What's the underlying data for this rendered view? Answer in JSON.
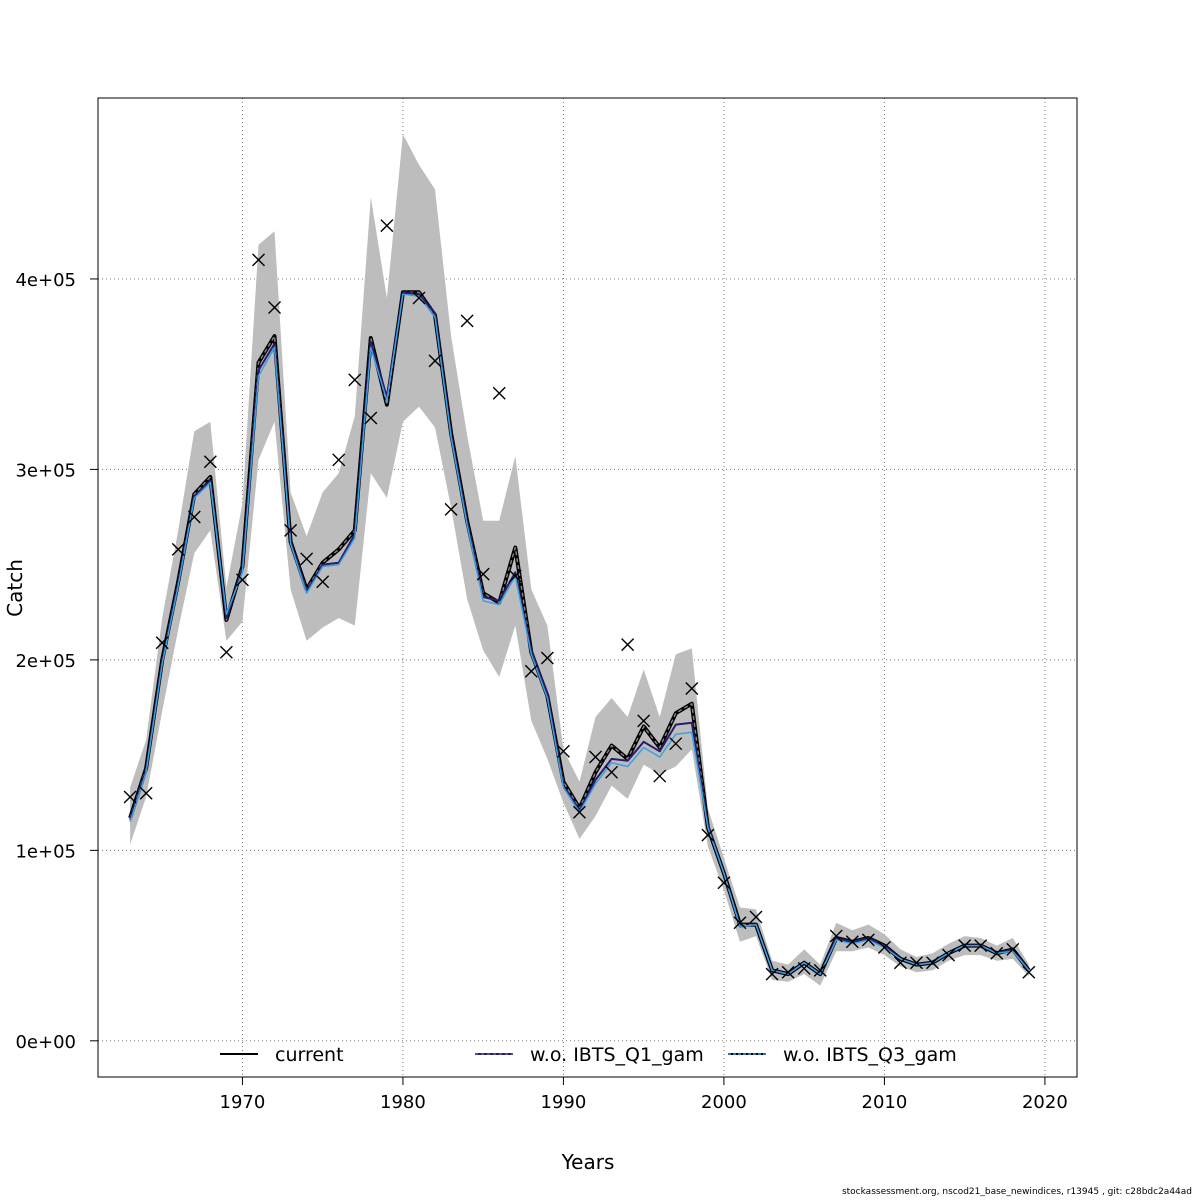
{
  "footer": "stockassessment.org, nscod21_base_newindices, r13945 , git: c28bdc2a44ad",
  "chart_data": {
    "type": "line",
    "title": "",
    "xlabel": "Years",
    "ylabel": "Catch",
    "xlim": [
      1961,
      2022
    ],
    "ylim": [
      -19000,
      495000
    ],
    "xticks": [
      1970,
      1980,
      1990,
      2000,
      2010,
      2020
    ],
    "yticks": [
      0,
      100000,
      200000,
      300000,
      400000
    ],
    "ytick_labels": [
      "0e+00",
      "1e+05",
      "2e+05",
      "3e+05",
      "4e+05"
    ],
    "grid": true,
    "legend_position": "bottom",
    "x": [
      1963,
      1964,
      1965,
      1966,
      1967,
      1968,
      1969,
      1970,
      1971,
      1972,
      1973,
      1974,
      1975,
      1976,
      1977,
      1978,
      1979,
      1980,
      1981,
      1982,
      1983,
      1984,
      1985,
      1986,
      1987,
      1988,
      1989,
      1990,
      1991,
      1992,
      1993,
      1994,
      1995,
      1996,
      1997,
      1998,
      1999,
      2000,
      2001,
      2002,
      2003,
      2004,
      2005,
      2006,
      2007,
      2008,
      2009,
      2010,
      2011,
      2012,
      2013,
      2014,
      2015,
      2016,
      2017,
      2018,
      2019
    ],
    "band": {
      "color": "#bdbdbd",
      "upper": [
        133000,
        158000,
        222000,
        268000,
        320000,
        325000,
        238000,
        282000,
        418000,
        425000,
        288000,
        265000,
        288000,
        298000,
        328000,
        443000,
        390000,
        476000,
        460000,
        447000,
        370000,
        318000,
        273000,
        273000,
        307000,
        237000,
        218000,
        153000,
        136000,
        170000,
        180000,
        170000,
        195000,
        170000,
        203000,
        206000,
        122000,
        96000,
        70000,
        69000,
        42000,
        40000,
        48000,
        40000,
        62000,
        58000,
        61000,
        56000,
        48000,
        44000,
        46000,
        51000,
        55000,
        54000,
        50000,
        54000,
        40000
      ],
      "lower": [
        103000,
        128000,
        173000,
        216000,
        256000,
        268000,
        210000,
        220000,
        305000,
        325000,
        237000,
        210000,
        217000,
        222000,
        218000,
        298000,
        285000,
        325000,
        333000,
        322000,
        280000,
        232000,
        205000,
        191000,
        218000,
        168000,
        148000,
        125000,
        106000,
        118000,
        134000,
        127000,
        145000,
        140000,
        144000,
        153000,
        102000,
        79000,
        52000,
        55000,
        32000,
        31000,
        35000,
        29000,
        47000,
        47000,
        49000,
        45000,
        39000,
        36000,
        37000,
        42000,
        45000,
        45000,
        42000,
        43000,
        34000
      ]
    },
    "series": [
      {
        "name": "current",
        "color": "#000000",
        "values": [
          117000,
          143000,
          200000,
          241000,
          287000,
          296000,
          221000,
          249000,
          356000,
          370000,
          262000,
          237000,
          251000,
          258000,
          268000,
          369000,
          334000,
          393000,
          393000,
          381000,
          319000,
          273000,
          235000,
          230000,
          259000,
          204000,
          181000,
          136000,
          122000,
          141000,
          155000,
          148000,
          165000,
          154000,
          172000,
          177000,
          112000,
          88000,
          61000,
          61000,
          37000,
          35000,
          41000,
          35000,
          54000,
          52000,
          54000,
          50000,
          43000,
          40000,
          41000,
          46000,
          50000,
          50000,
          46000,
          48000,
          37000
        ]
      },
      {
        "name": "w.o. IBTS_Q1_gam",
        "color": "#2a1c6b",
        "values": [
          116000,
          142000,
          199000,
          240000,
          286000,
          294000,
          222000,
          248000,
          352000,
          366000,
          262000,
          236000,
          250000,
          251000,
          266000,
          367000,
          338000,
          393000,
          392000,
          382000,
          318000,
          272000,
          233000,
          231000,
          246000,
          205000,
          182000,
          134000,
          121000,
          137000,
          148000,
          147000,
          157000,
          152000,
          166000,
          167000,
          113000,
          88000,
          60000,
          61000,
          37000,
          35000,
          41000,
          35000,
          54000,
          52000,
          54000,
          50000,
          43000,
          40000,
          41000,
          46000,
          50000,
          50000,
          46000,
          48000,
          37000
        ]
      },
      {
        "name": "w.o. IBTS_Q3_gam",
        "color": "#3aa0e0",
        "values": [
          115000,
          141000,
          198000,
          239000,
          285000,
          293000,
          224000,
          246000,
          349000,
          364000,
          261000,
          235000,
          249000,
          250000,
          264000,
          364000,
          336000,
          392000,
          391000,
          380000,
          317000,
          271000,
          231000,
          229000,
          244000,
          203000,
          180000,
          133000,
          120000,
          135000,
          146000,
          144000,
          154000,
          149000,
          161000,
          162000,
          112000,
          88000,
          60000,
          61000,
          37000,
          35000,
          41000,
          35000,
          53000,
          51000,
          53000,
          49000,
          43000,
          40000,
          41000,
          46000,
          50000,
          50000,
          46000,
          47000,
          37000
        ]
      }
    ],
    "observations": {
      "marker": "x",
      "values": [
        128000,
        130000,
        209000,
        258000,
        275000,
        304000,
        204000,
        242000,
        410000,
        385000,
        268000,
        253000,
        241000,
        305000,
        347000,
        327000,
        428000,
        null,
        390000,
        357000,
        279000,
        378000,
        245000,
        340000,
        244000,
        194000,
        201000,
        152000,
        120000,
        149000,
        141000,
        208000,
        168000,
        139000,
        156000,
        185000,
        108000,
        83000,
        62000,
        65000,
        35000,
        36000,
        38000,
        37000,
        55000,
        52000,
        53000,
        49000,
        41000,
        41000,
        41000,
        45000,
        50000,
        50000,
        46000,
        48000,
        36000
      ]
    }
  }
}
